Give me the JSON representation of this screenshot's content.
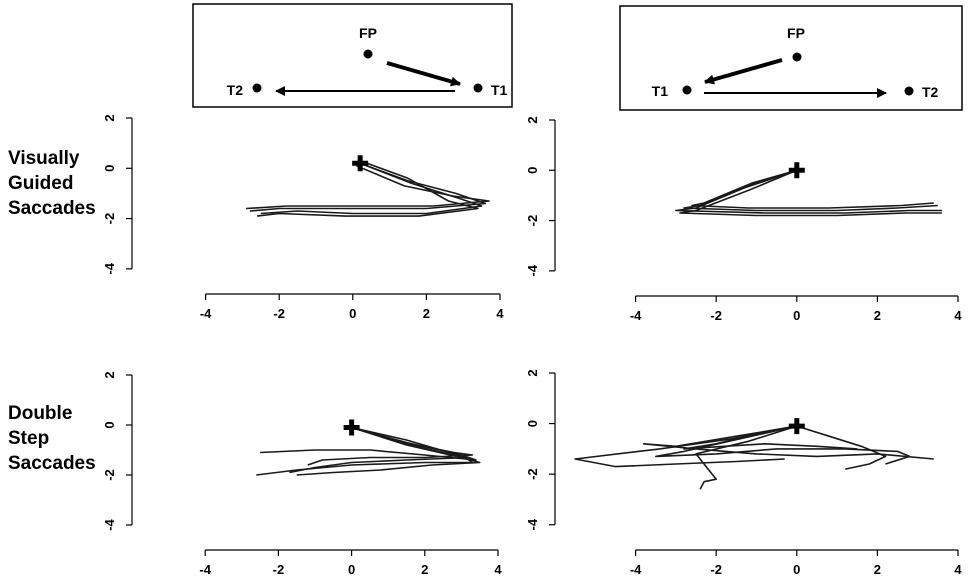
{
  "row_labels": [
    {
      "lines": [
        "Visually",
        "Guided",
        "Saccades"
      ]
    },
    {
      "lines": [
        "Double",
        "Step",
        "Saccades"
      ]
    }
  ],
  "schematics": [
    {
      "fp": "FP",
      "t1": "T1",
      "t2": "T2",
      "order": "T2 left, T1 right; first saccade FP→T1 (right), second T1→T2 (left)"
    },
    {
      "fp": "FP",
      "t1": "T1",
      "t2": "T2",
      "order": "T1 left, T2 right; first saccade FP→T1 (left), second T1→T2 (right)"
    }
  ],
  "chart_data": [
    {
      "type": "line",
      "row": "Visually Guided Saccades",
      "xticks": [
        -4,
        -2,
        0,
        2,
        4
      ],
      "yticks": [
        -4,
        -2,
        0,
        2
      ],
      "xlim": [
        -6,
        4
      ],
      "ylim": [
        -5,
        2
      ],
      "marker": {
        "x": 0.2,
        "y": 0.2
      },
      "series": [
        {
          "x": [
            0.2,
            1.5,
            2.8,
            3.6,
            2.0,
            0.0,
            -2.0,
            -2.8
          ],
          "y": [
            0.2,
            -0.5,
            -1.0,
            -1.4,
            -1.6,
            -1.6,
            -1.6,
            -1.7
          ]
        },
        {
          "x": [
            0.2,
            1.6,
            2.9,
            3.5,
            2.0,
            0.0,
            -1.5,
            -2.5
          ],
          "y": [
            0.2,
            -0.6,
            -1.2,
            -1.5,
            -1.8,
            -1.8,
            -1.7,
            -1.8
          ]
        },
        {
          "x": [
            0.1,
            1.4,
            2.7,
            3.7,
            2.2,
            0.0,
            -1.8,
            -2.9
          ],
          "y": [
            0.1,
            -0.7,
            -1.1,
            -1.3,
            -1.5,
            -1.5,
            -1.5,
            -1.6
          ]
        },
        {
          "x": [
            0.2,
            1.5,
            2.6,
            3.4,
            1.8,
            -0.2,
            -2.0,
            -2.6
          ],
          "y": [
            0.3,
            -0.4,
            -1.3,
            -1.6,
            -1.9,
            -1.9,
            -1.8,
            -1.9
          ]
        }
      ]
    },
    {
      "type": "line",
      "row": "Visually Guided Saccades",
      "xticks": [
        -4,
        -2,
        0,
        2,
        4
      ],
      "yticks": [
        -4,
        -2,
        0,
        2
      ],
      "xlim": [
        -6,
        4
      ],
      "ylim": [
        -5,
        2
      ],
      "marker": {
        "x": 0.0,
        "y": 0.0
      },
      "series": [
        {
          "x": [
            0.0,
            -1.2,
            -2.4,
            -2.8,
            -1.0,
            1.0,
            2.5,
            3.5
          ],
          "y": [
            0.0,
            -0.6,
            -1.4,
            -1.5,
            -1.6,
            -1.6,
            -1.5,
            -1.4
          ]
        },
        {
          "x": [
            0.0,
            -1.3,
            -2.5,
            -3.0,
            -0.8,
            1.2,
            2.8,
            3.6
          ],
          "y": [
            0.0,
            -0.7,
            -1.5,
            -1.6,
            -1.7,
            -1.7,
            -1.6,
            -1.6
          ]
        },
        {
          "x": [
            0.0,
            -1.1,
            -2.3,
            -2.6,
            -1.2,
            0.8,
            2.6,
            3.4
          ],
          "y": [
            0.0,
            -0.5,
            -1.3,
            -1.4,
            -1.5,
            -1.5,
            -1.4,
            -1.3
          ]
        },
        {
          "x": [
            0.0,
            -1.2,
            -2.5,
            -2.9,
            -1.0,
            1.0,
            2.7,
            3.6
          ],
          "y": [
            0.0,
            -0.8,
            -1.6,
            -1.7,
            -1.8,
            -1.8,
            -1.7,
            -1.7
          ]
        }
      ]
    },
    {
      "type": "line",
      "row": "Double Step Saccades",
      "xticks": [
        -4,
        -2,
        0,
        2,
        4
      ],
      "yticks": [
        -4,
        -2,
        0,
        2
      ],
      "xlim": [
        -6,
        4
      ],
      "ylim": [
        -5,
        2
      ],
      "marker": {
        "x": 0.0,
        "y": -0.1
      },
      "series": [
        {
          "x": [
            0.0,
            1.5,
            3.0,
            3.4,
            2.0,
            0.5,
            -1.0,
            -2.5
          ],
          "y": [
            -0.1,
            -0.7,
            -1.2,
            -1.4,
            -1.2,
            -1.0,
            -1.0,
            -1.1
          ]
        },
        {
          "x": [
            0.0,
            1.6,
            3.1,
            3.3,
            2.0,
            0.0,
            -1.5,
            -2.6
          ],
          "y": [
            -0.1,
            -0.8,
            -1.3,
            -1.5,
            -1.5,
            -1.6,
            -1.8,
            -2.0
          ]
        },
        {
          "x": [
            0.0,
            1.5,
            2.9,
            3.2,
            1.5,
            0.0,
            -1.0,
            -1.7
          ],
          "y": [
            -0.1,
            -0.6,
            -1.2,
            -1.3,
            -1.4,
            -1.5,
            -1.7,
            -1.9
          ]
        },
        {
          "x": [
            0.0,
            1.4,
            2.8,
            3.3,
            2.0,
            0.5,
            -0.8,
            -1.2
          ],
          "y": [
            -0.1,
            -0.7,
            -1.1,
            -1.2,
            -1.3,
            -1.3,
            -1.4,
            -1.6
          ]
        },
        {
          "x": [
            0.0,
            1.5,
            3.0,
            3.5,
            2.2,
            0.8,
            -0.5,
            -1.5
          ],
          "y": [
            -0.1,
            -0.8,
            -1.3,
            -1.5,
            -1.6,
            -1.8,
            -1.9,
            -2.0
          ]
        }
      ]
    },
    {
      "type": "line",
      "row": "Double Step Saccades",
      "xticks": [
        -4,
        -2,
        0,
        2,
        4
      ],
      "yticks": [
        -4,
        -2,
        0,
        2
      ],
      "xlim": [
        -6,
        4
      ],
      "ylim": [
        -5,
        2
      ],
      "marker": {
        "x": 0.0,
        "y": -0.1
      },
      "series": [
        {
          "x": [
            0.0,
            -1.5,
            -3.0,
            -3.8,
            -2.5,
            -1.0,
            0.5,
            2.0,
            3.4
          ],
          "y": [
            -0.1,
            -0.5,
            -0.9,
            -0.8,
            -1.0,
            -1.2,
            -1.3,
            -1.2,
            -1.4
          ]
        },
        {
          "x": [
            0.0,
            -1.2,
            -2.5,
            -2.2,
            -2.0,
            -2.3,
            -2.4
          ],
          "y": [
            -0.1,
            -0.7,
            -1.2,
            -1.8,
            -2.2,
            -2.3,
            -2.6
          ]
        },
        {
          "x": [
            0.0,
            -1.6,
            -3.4,
            -5.5,
            -4.5,
            -3.0,
            -1.5,
            -0.3
          ],
          "y": [
            -0.1,
            -0.6,
            -1.0,
            -1.4,
            -1.7,
            -1.6,
            -1.5,
            -1.4
          ]
        },
        {
          "x": [
            0.0,
            -1.4,
            -2.8,
            -3.5,
            -2.0,
            -0.5,
            1.2,
            2.5,
            2.8,
            2.2
          ],
          "y": [
            -0.1,
            -0.6,
            -1.1,
            -1.3,
            -1.2,
            -1.0,
            -1.0,
            -1.1,
            -1.3,
            -1.6
          ]
        },
        {
          "x": [
            0.0,
            -1.0,
            -2.0,
            -2.8,
            -1.8,
            -0.8,
            0.5,
            1.5
          ],
          "y": [
            -0.1,
            -0.4,
            -0.8,
            -1.0,
            -0.9,
            -0.8,
            -0.9,
            -1.0
          ]
        },
        {
          "x": [
            0.0,
            0.8,
            1.6,
            2.2,
            1.8,
            1.2
          ],
          "y": [
            -0.1,
            -0.5,
            -0.9,
            -1.3,
            -1.6,
            -1.8
          ]
        }
      ]
    }
  ]
}
